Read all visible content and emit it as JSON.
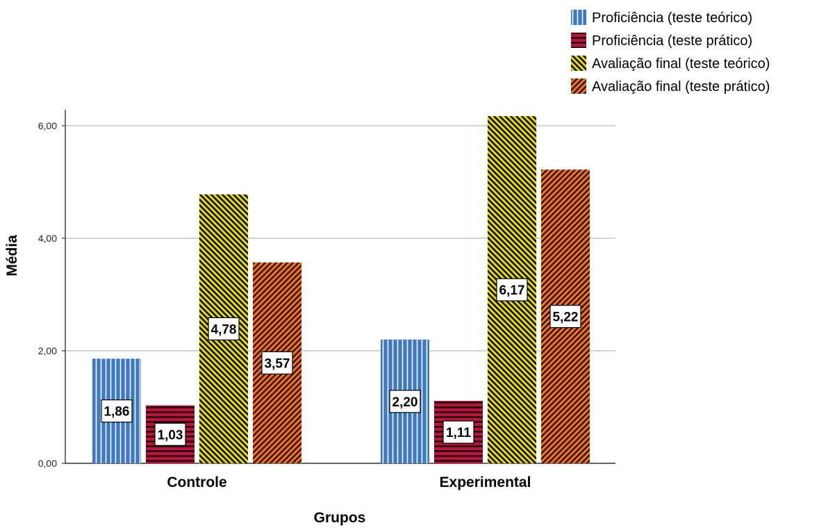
{
  "chart_data": {
    "type": "bar",
    "xlabel": "Grupos",
    "ylabel": "Média",
    "categories": [
      "Controle",
      "Experimental"
    ],
    "ylim": [
      0,
      6.2
    ],
    "yticks": [
      0,
      2,
      4,
      6
    ],
    "ytick_labels": [
      "0,00",
      "2,00",
      "4,00",
      "6,00"
    ],
    "grid": true,
    "legend_position": "top-right",
    "series": [
      {
        "name": "Proficiência (teste teórico)",
        "values": [
          1.86,
          2.2
        ],
        "labels": [
          "1,86",
          "2,20"
        ],
        "color": "#3d78c4",
        "pattern": "vertical-stripes"
      },
      {
        "name": "Proficiência (teste prático)",
        "values": [
          1.03,
          1.11
        ],
        "labels": [
          "1,03",
          "1,11"
        ],
        "color": "#b5173a",
        "pattern": "horizontal-stripes"
      },
      {
        "name": "Avaliação final (teste teórico)",
        "values": [
          4.78,
          6.17
        ],
        "labels": [
          "4,78",
          "6,17"
        ],
        "color": "#e3d71e",
        "pattern": "diagonal-down"
      },
      {
        "name": "Avaliação final (teste prático)",
        "values": [
          3.57,
          5.22
        ],
        "labels": [
          "3,57",
          "5,22"
        ],
        "color": "#f06a2c",
        "pattern": "diagonal-up"
      }
    ]
  }
}
